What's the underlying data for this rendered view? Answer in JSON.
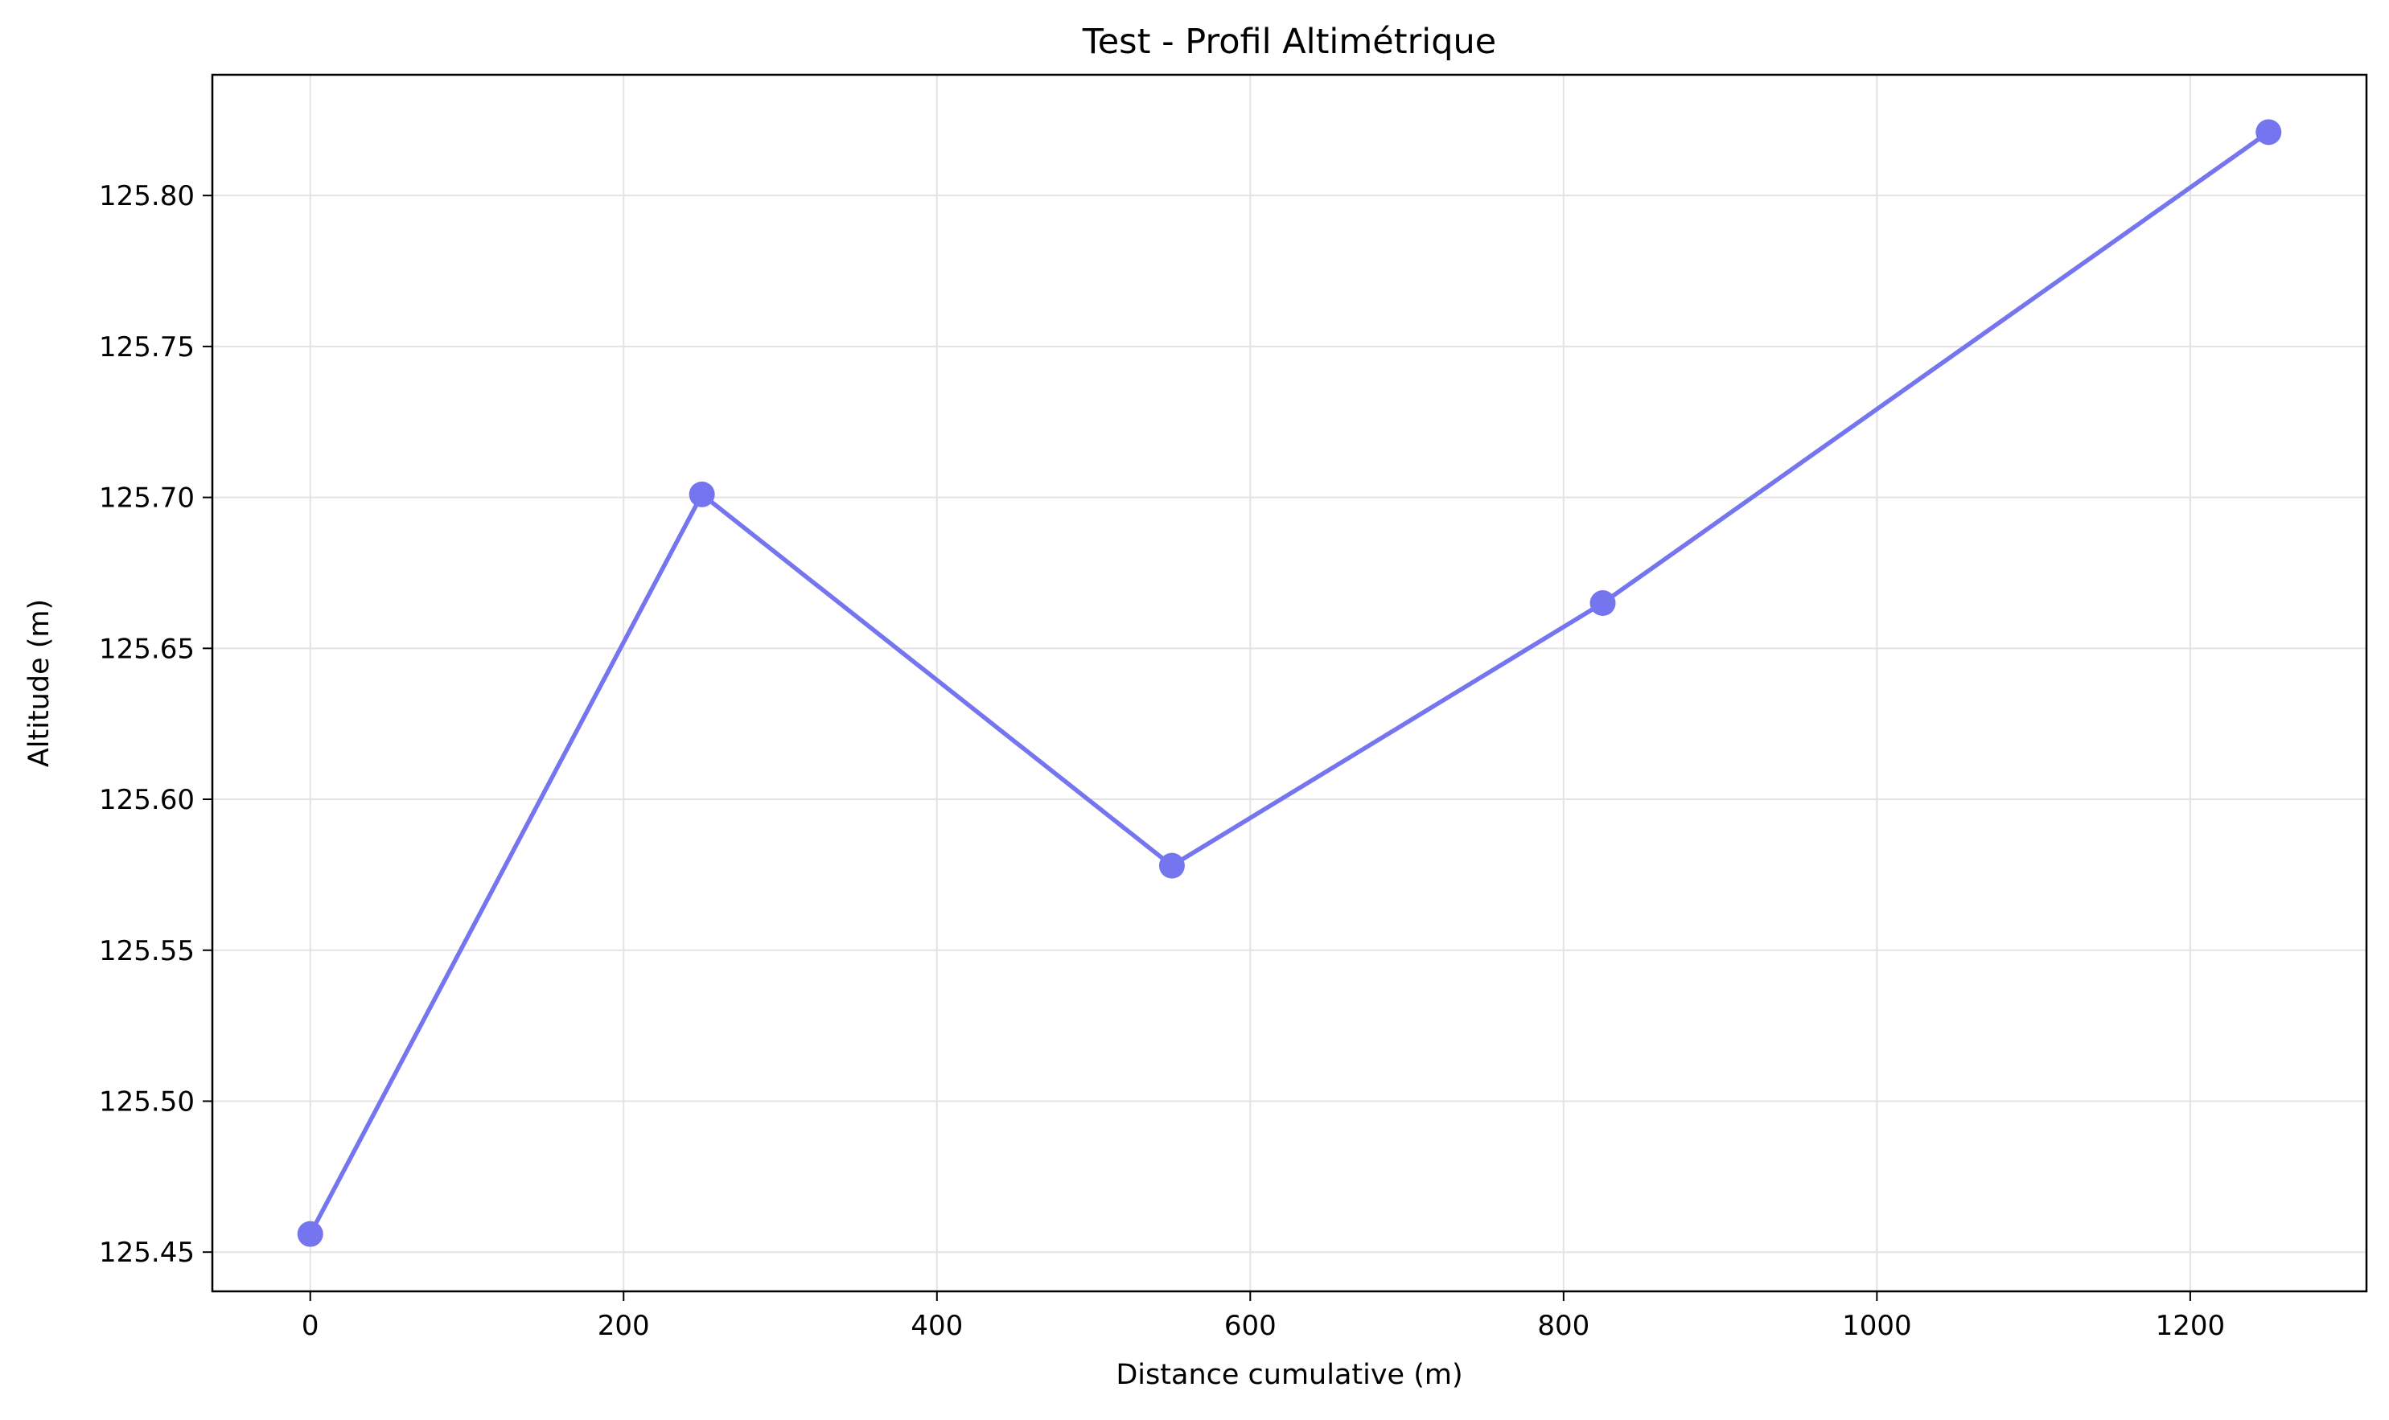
{
  "chart_data": {
    "type": "line",
    "title": "Test - Profil Altimétrique",
    "xlabel": "Distance cumulative (m)",
    "ylabel": "Altitude (m)",
    "xlim": [
      -62.5,
      1312.5
    ],
    "ylim": [
      125.437,
      125.84
    ],
    "x_ticks": [
      0,
      200,
      400,
      600,
      800,
      1000,
      1200
    ],
    "x_tick_labels": [
      "0",
      "200",
      "400",
      "600",
      "800",
      "1000",
      "1200"
    ],
    "y_ticks": [
      125.45,
      125.5,
      125.55,
      125.6,
      125.65,
      125.7,
      125.75,
      125.8
    ],
    "y_tick_labels": [
      "125.45",
      "125.50",
      "125.55",
      "125.60",
      "125.65",
      "125.70",
      "125.75",
      "125.80"
    ],
    "grid": true,
    "series": [
      {
        "color": "#7575ef",
        "marker": "circle",
        "x": [
          0,
          250,
          550,
          825,
          1250
        ],
        "y": [
          125.456,
          125.701,
          125.578,
          125.665,
          125.821
        ]
      }
    ]
  }
}
